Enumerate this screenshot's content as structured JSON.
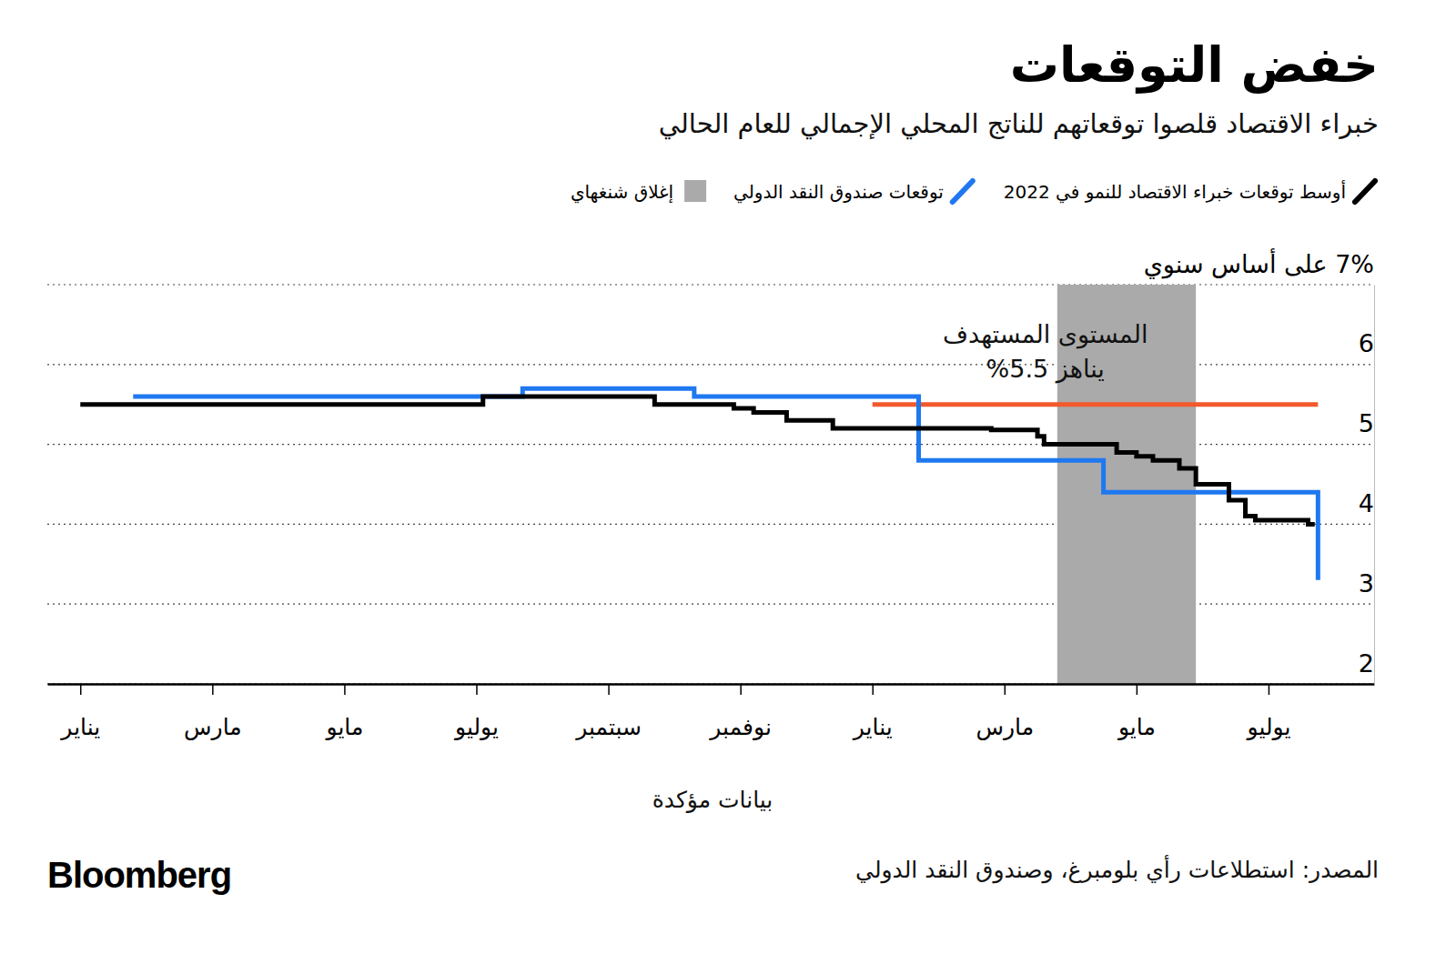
{
  "chart_data": {
    "type": "line",
    "title": "خفض التوقعات",
    "subtitle": "خبراء الاقتصاد قلصوا توقعاتهم للناتج المحلي الإجمالي للعام الحالي",
    "xlim": [
      -0.5,
      19.6
    ],
    "xticks": [
      {
        "value": 0,
        "label": "يناير"
      },
      {
        "value": 2,
        "label": "مارس"
      },
      {
        "value": 4,
        "label": "مايو"
      },
      {
        "value": 6,
        "label": "يوليو"
      },
      {
        "value": 8,
        "label": "سبتمبر"
      },
      {
        "value": 10,
        "label": "نوفمبر"
      },
      {
        "value": 12,
        "label": "يناير"
      },
      {
        "value": 14,
        "label": "مارس"
      },
      {
        "value": 16,
        "label": "مايو"
      },
      {
        "value": 18,
        "label": "يوليو"
      }
    ],
    "ylim": [
      2,
      7
    ],
    "yticks": [
      2,
      3,
      4,
      5,
      6,
      {
        "value": 7,
        "label": "7% على أساس سنوي"
      }
    ],
    "grid": true,
    "legend": "top-right",
    "series": [
      {
        "name": "أوسط توقعات خبراء الاقتصاد للنمو في 2022",
        "color": "#000000",
        "line_style": "step",
        "x": [
          0,
          6.1,
          8.7,
          9.9,
          10.2,
          10.7,
          11.4,
          13.8,
          14.5,
          14.6,
          15.7,
          16.0,
          16.25,
          16.65,
          16.9,
          17.4,
          17.65,
          17.8,
          18.6,
          18.7
        ],
        "values": [
          5.5,
          5.6,
          5.5,
          5.45,
          5.4,
          5.3,
          5.2,
          5.18,
          5.1,
          5.0,
          4.9,
          4.85,
          4.8,
          4.7,
          4.5,
          4.3,
          4.1,
          4.05,
          4.0,
          4.0
        ]
      },
      {
        "name": "توقعات صندوق النقد الدولي",
        "color": "#1f78f0",
        "line_style": "step",
        "x": [
          0.8,
          6.7,
          9.3,
          12.7,
          15.5,
          18.75
        ],
        "values": [
          5.6,
          5.7,
          5.6,
          4.8,
          4.4,
          3.3
        ]
      }
    ],
    "shanghai_lockdown": {
      "name": "إغلاق شنغهاي",
      "color": "#aaaaaa",
      "range": [
        14.8,
        16.9
      ]
    },
    "target": {
      "label": [
        "المستوى المستهدف",
        "يناهز 5.5%"
      ],
      "value": 5.5,
      "color": "#f25a2c",
      "x": [
        12,
        18.75
      ]
    },
    "note": "بيانات مؤكدة",
    "source": "المصدر: استطلاعات رأي بلومبرغ، وصندوق النقد الدولي",
    "brand": "Bloomberg"
  }
}
